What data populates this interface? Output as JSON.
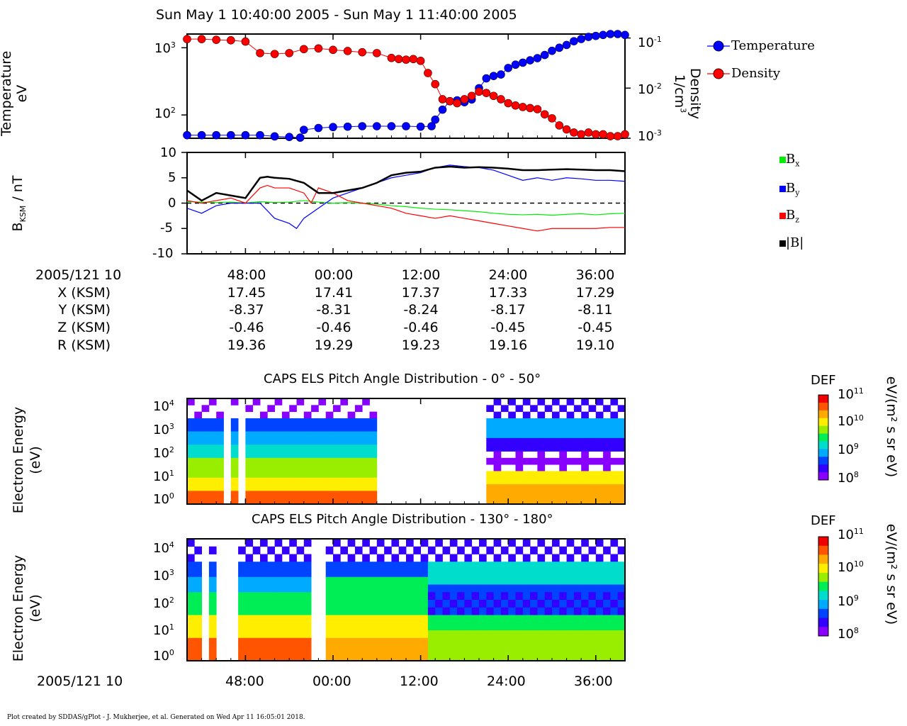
{
  "page_title": "Sun May 1 10:40:00 2005 - Sun May 1 11:40:00 2005",
  "panels": {
    "plasma": {
      "ylabel_left": [
        "Temperature",
        "eV"
      ],
      "ylabel_right": [
        "Density",
        "1/cm"
      ],
      "ylabel_right_exp": "3",
      "left_ticks": [
        {
          "base": "10",
          "exp": "3"
        },
        {
          "base": "10",
          "exp": "2"
        }
      ],
      "right_ticks": [
        {
          "base": "10",
          "exp": "-1"
        },
        {
          "base": "10",
          "exp": "-2"
        },
        {
          "base": "10",
          "exp": "-3"
        }
      ],
      "legend": [
        {
          "label": "Temperature",
          "color": "#0000ff"
        },
        {
          "label": "Density",
          "color": "#ff0000"
        }
      ]
    },
    "bfield": {
      "ylabel_main": "B",
      "ylabel_sub": "KSM",
      "ylabel_unit": " / nT",
      "ticks": [
        "10",
        "5",
        "0",
        "-5",
        "-10"
      ],
      "legend": [
        {
          "base": "B",
          "sub": "x",
          "color": "#00ee00"
        },
        {
          "base": "B",
          "sub": "y",
          "color": "#0000ff"
        },
        {
          "base": "B",
          "sub": "z",
          "color": "#ff0000"
        },
        {
          "base": "|B|",
          "sub": "",
          "color": "#000000"
        }
      ]
    },
    "els1": {
      "title": "CAPS ELS Pitch Angle Distribution - 0° - 50°",
      "ylabel": [
        "Electron Energy",
        "(eV)"
      ],
      "ticks": [
        {
          "base": "10",
          "exp": "4"
        },
        {
          "base": "10",
          "exp": "3"
        },
        {
          "base": "10",
          "exp": "2"
        },
        {
          "base": "10",
          "exp": "1"
        },
        {
          "base": "10",
          "exp": "0"
        }
      ],
      "cbar_label": "DEF",
      "cbar_ticks": [
        {
          "base": "10",
          "exp": "11"
        },
        {
          "base": "10",
          "exp": "10"
        },
        {
          "base": "10",
          "exp": "9"
        },
        {
          "base": "10",
          "exp": "8"
        }
      ],
      "cbar_units": "eV/(m² s sr eV)"
    },
    "els2": {
      "title": "CAPS ELS Pitch Angle Distribution - 130° - 180°",
      "ylabel": [
        "Electron Energy",
        "(eV)"
      ],
      "ticks": [
        {
          "base": "10",
          "exp": "4"
        },
        {
          "base": "10",
          "exp": "3"
        },
        {
          "base": "10",
          "exp": "2"
        },
        {
          "base": "10",
          "exp": "1"
        },
        {
          "base": "10",
          "exp": "0"
        }
      ],
      "cbar_label": "DEF",
      "cbar_ticks": [
        {
          "base": "10",
          "exp": "11"
        },
        {
          "base": "10",
          "exp": "10"
        },
        {
          "base": "10",
          "exp": "9"
        },
        {
          "base": "10",
          "exp": "8"
        }
      ],
      "cbar_units": "eV/(m² s sr eV)"
    }
  },
  "orbit_table": {
    "row_labels": [
      "2005/121 10",
      "X (KSM)",
      "Y (KSM)",
      "Z (KSM)",
      "R (KSM)"
    ],
    "columns": [
      [
        "48:00",
        "17.45",
        "-8.37",
        "-0.46",
        "19.36"
      ],
      [
        "00:00",
        "17.41",
        "-8.31",
        "-0.46",
        "19.29"
      ],
      [
        "12:00",
        "17.37",
        "-8.24",
        "-0.46",
        "19.23"
      ],
      [
        "24:00",
        "17.33",
        "-8.17",
        "-0.45",
        "19.16"
      ],
      [
        "36:00",
        "17.29",
        "-8.11",
        "-0.45",
        "19.10"
      ]
    ]
  },
  "bottom_axis": {
    "label": "2005/121 10",
    "ticks": [
      "48:00",
      "00:00",
      "12:00",
      "24:00",
      "36:00"
    ]
  },
  "footer": "Plot created by SDDAS/gPlot - J. Mukherjee, et al.  Generated on Wed Apr 11 16:05:01 2018.",
  "chart_data": [
    {
      "type": "scatter",
      "title": "",
      "xlabel": "",
      "ylabel": "Temperature eV",
      "y2label": "Density 1/cm3",
      "x_unit": "minutes after 10:40",
      "xlim": [
        0,
        60
      ],
      "yscale": "log",
      "ylim": [
        45,
        1600
      ],
      "y2scale": "log",
      "y2lim": [
        0.001,
        0.12
      ],
      "series": [
        {
          "name": "Temperature",
          "color": "#0000ff",
          "x": [
            0,
            2,
            4,
            6,
            8,
            10,
            12,
            14,
            15.5,
            16,
            18,
            20,
            22,
            24,
            26,
            28,
            30,
            32,
            33.5,
            34,
            35,
            36,
            37,
            38,
            39,
            40,
            41,
            42,
            43,
            44,
            45,
            46,
            47,
            48,
            49,
            50,
            51,
            52,
            53,
            54,
            55,
            56,
            57,
            58,
            59,
            60
          ],
          "y": [
            50,
            50,
            50,
            50,
            50,
            50,
            48,
            47,
            46,
            60,
            64,
            66,
            67,
            68,
            68,
            68,
            68,
            67,
            68,
            85,
            120,
            160,
            165,
            155,
            170,
            250,
            350,
            380,
            400,
            500,
            560,
            600,
            650,
            700,
            780,
            900,
            1000,
            1100,
            1250,
            1350,
            1450,
            1500,
            1550,
            1600,
            1600,
            1550
          ]
        },
        {
          "name": "Density",
          "color": "#ff0000",
          "x": [
            0,
            2,
            4,
            6,
            8,
            10,
            12,
            14,
            16,
            18,
            20,
            22,
            24,
            26,
            28,
            29,
            30,
            31,
            32,
            33,
            34,
            35,
            36,
            37,
            38,
            39,
            40,
            41,
            42,
            43,
            44,
            45,
            46,
            47,
            48,
            49,
            50,
            51,
            52,
            53,
            54,
            55,
            56,
            57,
            58,
            59,
            60
          ],
          "y": [
            0.095,
            0.095,
            0.092,
            0.09,
            0.085,
            0.05,
            0.048,
            0.05,
            0.06,
            0.062,
            0.058,
            0.055,
            0.052,
            0.05,
            0.04,
            0.038,
            0.037,
            0.038,
            0.035,
            0.02,
            0.012,
            0.006,
            0.0055,
            0.005,
            0.006,
            0.007,
            0.0085,
            0.008,
            0.007,
            0.006,
            0.005,
            0.0045,
            0.0042,
            0.004,
            0.0038,
            0.003,
            0.0025,
            0.0018,
            0.0015,
            0.0013,
            0.0012,
            0.0013,
            0.0012,
            0.0012,
            0.0011,
            0.0011,
            0.0012
          ]
        }
      ]
    },
    {
      "type": "line",
      "title": "",
      "ylabel": "BKSM / nT",
      "x_unit": "minutes after 10:40",
      "xlim": [
        0,
        60
      ],
      "ylim": [
        -10,
        10
      ],
      "series": [
        {
          "name": "Bx",
          "color": "#00ee00",
          "x": [
            0,
            2,
            4,
            6,
            8,
            10,
            12,
            14,
            16,
            18,
            20,
            22,
            24,
            26,
            28,
            30,
            32,
            34,
            36,
            38,
            40,
            42,
            44,
            46,
            48,
            50,
            52,
            54,
            56,
            58,
            60
          ],
          "y": [
            0.3,
            0.2,
            0.1,
            0.2,
            0,
            0.3,
            0.1,
            0.2,
            0.5,
            0.2,
            0,
            0.1,
            0,
            -0.2,
            -0.5,
            -0.7,
            -1,
            -1.2,
            -1.3,
            -1.5,
            -1.7,
            -2,
            -2.2,
            -2.3,
            -2.2,
            -2.4,
            -2.2,
            -2.1,
            -2.3,
            -2.1,
            -2
          ]
        },
        {
          "name": "By",
          "color": "#0000ff",
          "x": [
            0,
            2,
            4,
            6,
            8,
            10,
            12,
            14,
            15,
            16,
            18,
            20,
            22,
            24,
            26,
            28,
            30,
            32,
            34,
            36,
            38,
            40,
            42,
            44,
            46,
            48,
            50,
            52,
            54,
            56,
            58,
            60
          ],
          "y": [
            -1,
            -2,
            -0.5,
            0,
            0,
            0,
            -3,
            -4,
            -5,
            -3,
            -1,
            1,
            2,
            3,
            4,
            5,
            5.5,
            6,
            7,
            7.5,
            7.2,
            7,
            6.5,
            5.5,
            4.5,
            5,
            4.5,
            5,
            4.8,
            4.5,
            4.5,
            4.3
          ]
        },
        {
          "name": "Bz",
          "color": "#ff0000",
          "x": [
            0,
            2,
            4,
            6,
            8,
            10,
            11,
            12,
            14,
            16,
            17,
            18,
            20,
            22,
            24,
            26,
            28,
            30,
            32,
            34,
            36,
            38,
            40,
            42,
            44,
            46,
            48,
            50,
            52,
            54,
            56,
            58,
            60
          ],
          "y": [
            0.5,
            0,
            0.5,
            1,
            0,
            3,
            3.5,
            3,
            3,
            2,
            0,
            3,
            2,
            0.5,
            0,
            -0.5,
            -1,
            -2,
            -2.5,
            -3,
            -2.5,
            -3,
            -3.5,
            -4,
            -4.5,
            -5,
            -5.5,
            -5,
            -5,
            -5,
            -5,
            -4.8,
            -4.8
          ]
        },
        {
          "name": "|B|",
          "color": "#000000",
          "x": [
            0,
            2,
            4,
            6,
            8,
            10,
            11,
            12,
            14,
            16,
            18,
            20,
            22,
            24,
            26,
            28,
            30,
            32,
            34,
            36,
            38,
            40,
            42,
            44,
            46,
            48,
            50,
            52,
            54,
            56,
            58,
            60
          ],
          "y": [
            2.5,
            0.5,
            2,
            1.5,
            1,
            5,
            5.2,
            5,
            4.8,
            4,
            2,
            2,
            2.5,
            3,
            4,
            5.5,
            6,
            6.2,
            7,
            7.2,
            7,
            7.1,
            7,
            6.8,
            6.5,
            6.5,
            6.6,
            6.7,
            6.6,
            6.5,
            6.5,
            6.3
          ]
        }
      ]
    }
  ]
}
